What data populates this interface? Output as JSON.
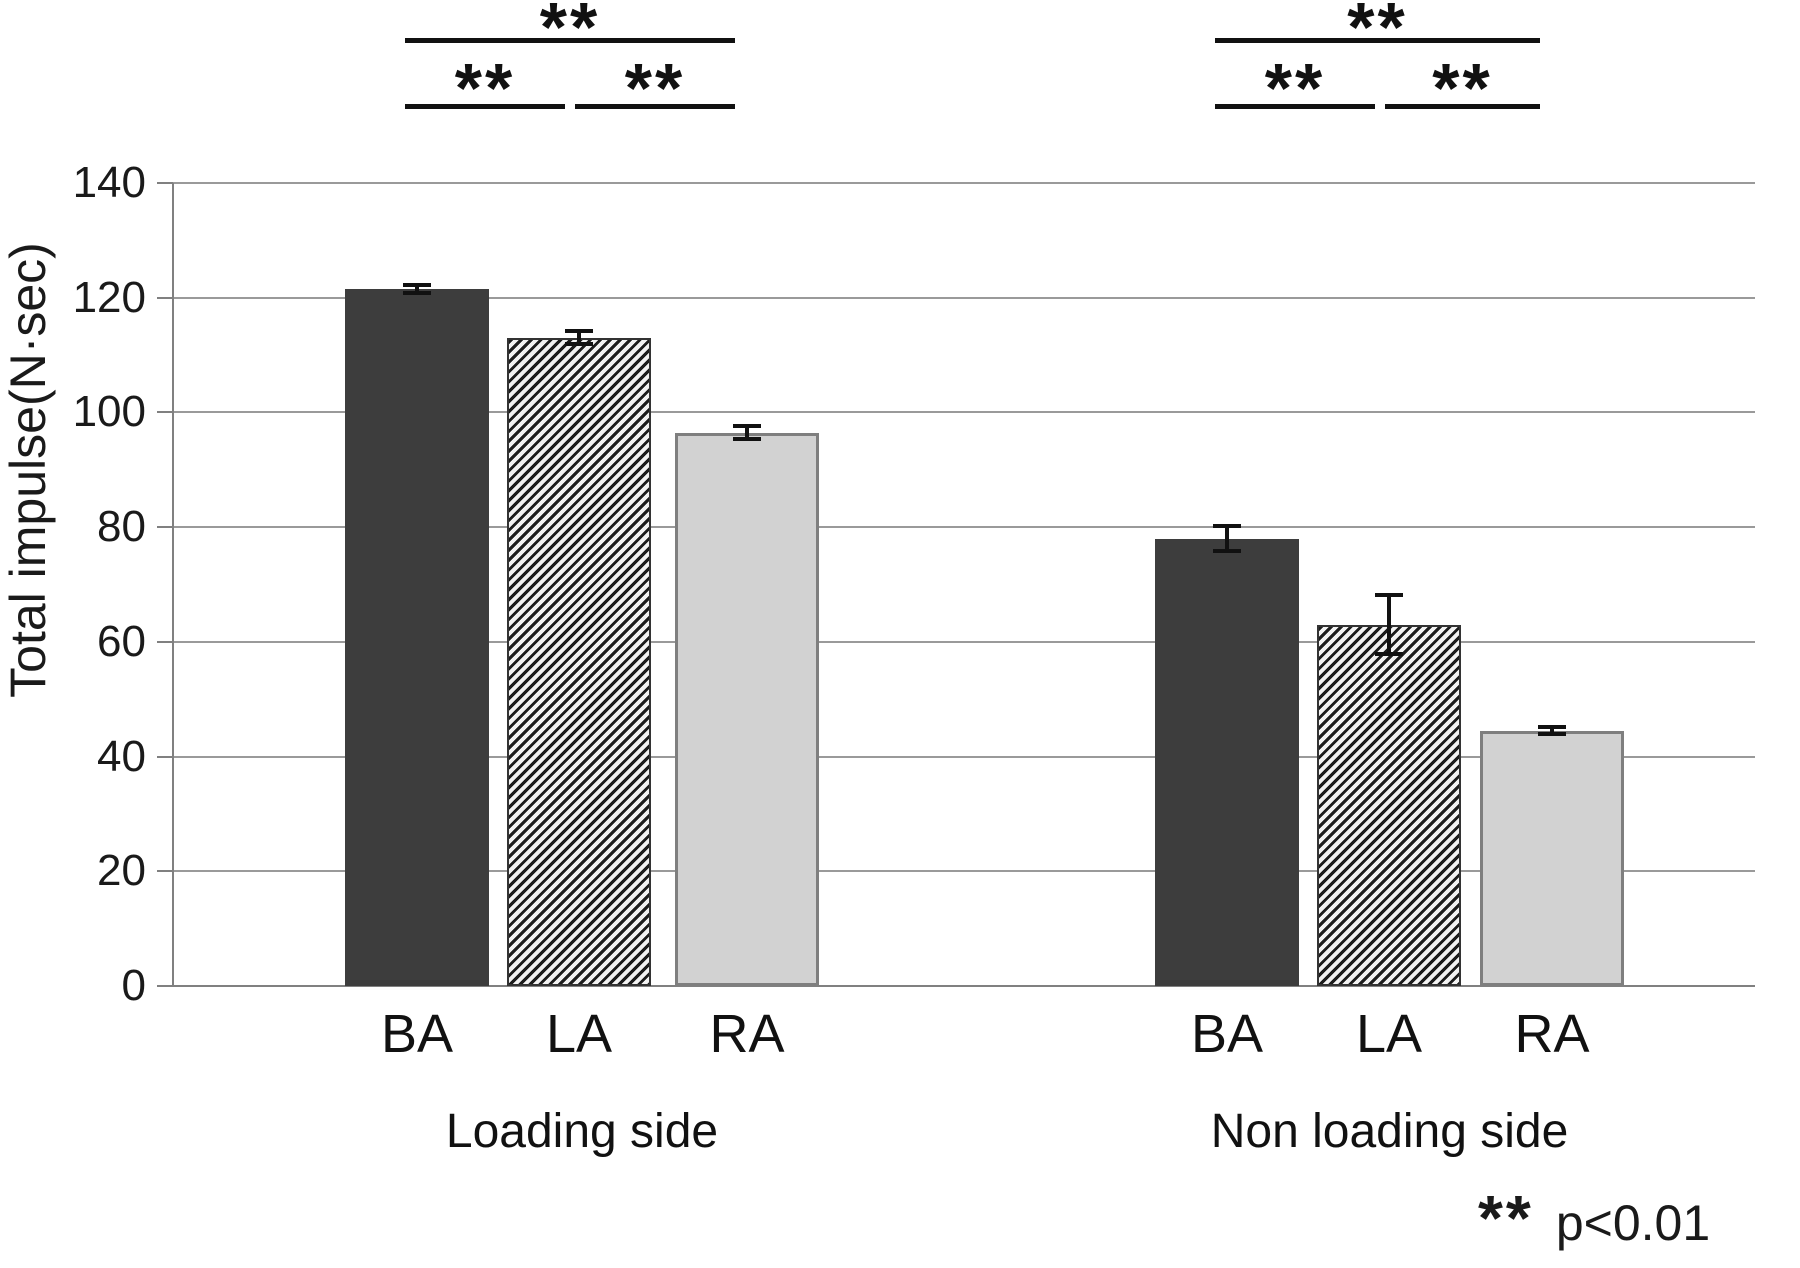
{
  "chart_data": {
    "type": "bar",
    "title": "",
    "xlabel": "",
    "ylabel": "Total impulse(N·sec)",
    "ylim": [
      0,
      140
    ],
    "yticks": [
      0,
      20,
      40,
      60,
      80,
      100,
      120,
      140
    ],
    "grid": true,
    "legend": "none",
    "categories": [
      "BA",
      "LA",
      "RA"
    ],
    "bar_styles": [
      "dark-solid",
      "diagonal-hatch",
      "light-gray-outlined"
    ],
    "groups": [
      {
        "label": "Loading side",
        "categories": [
          "BA",
          "LA",
          "RA"
        ],
        "values": [
          121.5,
          113,
          96.5
        ],
        "errors": [
          1.0,
          1.5,
          1.5
        ]
      },
      {
        "label": "Non loading side",
        "categories": [
          "BA",
          "LA",
          "RA"
        ],
        "values": [
          78,
          63,
          44.5
        ],
        "errors": [
          2.5,
          5.5,
          1.0
        ]
      }
    ]
  },
  "annotations": {
    "sig_marker": "**",
    "footnote_marker": "**",
    "footnote_text": "p<0.01",
    "brackets": [
      {
        "group": 0,
        "from": 0,
        "to": 2,
        "label": "**"
      },
      {
        "group": 0,
        "from": 0,
        "to": 1,
        "label": "**"
      },
      {
        "group": 0,
        "from": 1,
        "to": 2,
        "label": "**"
      },
      {
        "group": 1,
        "from": 0,
        "to": 2,
        "label": "**"
      },
      {
        "group": 1,
        "from": 0,
        "to": 1,
        "label": "**"
      },
      {
        "group": 1,
        "from": 1,
        "to": 2,
        "label": "**"
      }
    ]
  },
  "colors": {
    "bar_dark": "#3d3d3d",
    "bar_light_fill": "#d2d2d2",
    "bar_light_border": "#7f7f7f",
    "hatch_dark": "#1c1c1c",
    "hatch_light": "#f2f2f2",
    "gridline": "#9a9a9a",
    "axis": "#808080",
    "text": "#1a1a1a"
  }
}
